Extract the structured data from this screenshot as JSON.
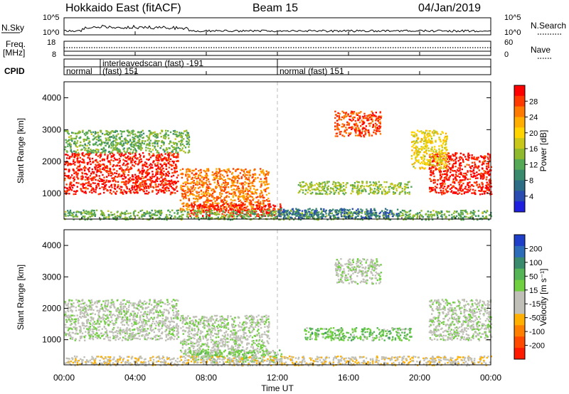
{
  "header": {
    "station": "Hokkaido East (fitACF)",
    "beam": "Beam 15",
    "date": "04/Jan/2019"
  },
  "panels": {
    "nsky_label": "N.Sky",
    "nsearch_label": "N.Search",
    "nsky_ticks": [
      "10^5",
      "10^0"
    ],
    "nsearch_ticks": [
      "10^5",
      "10^0"
    ],
    "freq_label_1": "Freq.",
    "freq_label_2": "[MHz]",
    "freq_ticks": [
      "18",
      "8"
    ],
    "nave_label": "Nave",
    "nave_ticks": [
      "60",
      "0"
    ],
    "cpid_label": "CPID"
  },
  "cpid_segments": [
    {
      "line1": "normal",
      "line2": ""
    },
    {
      "line1": "interleavedscan (fast) -191",
      "line2": "(fast) 151"
    },
    {
      "line1": "normal (fast) 151",
      "line2": ""
    }
  ],
  "power_colorbar": {
    "label": "Power [dB]",
    "ticks": [
      "28",
      "24",
      "20",
      "16",
      "12",
      "8",
      "4"
    ],
    "colors": [
      "#ff0000",
      "#ff3a00",
      "#ff7a00",
      "#ffae00",
      "#ffd400",
      "#c9c81a",
      "#8fba2e",
      "#55a855",
      "#3a8a6e",
      "#2d6e86",
      "#2a4cb0",
      "#1f1fe0"
    ]
  },
  "velocity_colorbar": {
    "label": "Velocity [m s⁻¹]",
    "ticks": [
      "200",
      "100",
      "50",
      "15",
      "-15",
      "-50",
      "-100",
      "-200"
    ],
    "colors": [
      "#1f3fc8",
      "#2d6cb8",
      "#3a8a6e",
      "#55b455",
      "#70d040",
      "#c0c0b8",
      "#c0c0b8",
      "#ffb000",
      "#ff8000",
      "#ff4a00",
      "#ff1a00"
    ]
  },
  "chart_data": {
    "type": "heatmap",
    "title": "Hokkaido East (fitACF)",
    "xlabel": "Time UT",
    "ylabel": "Slant Range [km]",
    "x_tick_labels": [
      "00:00",
      "04:00",
      "08:00",
      "12:00",
      "16:00",
      "20:00",
      "00:00"
    ],
    "x_ticks_hours": [
      0,
      4,
      8,
      12,
      16,
      20,
      24
    ],
    "xlim_hours": [
      0,
      24
    ],
    "y_ticks": [
      1000,
      2000,
      3000,
      4000
    ],
    "ylim": [
      200,
      4500
    ],
    "panels": [
      {
        "name": "Power [dB]",
        "zlim": [
          0,
          30
        ],
        "regions": [
          {
            "t0": 0.0,
            "t1": 6.4,
            "r0": 1000,
            "r1": 2300,
            "value": 28
          },
          {
            "t0": 0.0,
            "t1": 7.0,
            "r0": 2300,
            "r1": 3000,
            "value": 12
          },
          {
            "t0": 6.5,
            "t1": 11.5,
            "r0": 500,
            "r1": 1800,
            "value": 24
          },
          {
            "t0": 7.0,
            "t1": 12.2,
            "r0": 300,
            "r1": 700,
            "value": 28
          },
          {
            "t0": 0.0,
            "t1": 24.0,
            "r0": 200,
            "r1": 500,
            "value": 12
          },
          {
            "t0": 12.0,
            "t1": 18.8,
            "r0": 250,
            "r1": 550,
            "value": 6
          },
          {
            "t0": 15.2,
            "t1": 17.8,
            "r0": 2800,
            "r1": 3600,
            "value": 26
          },
          {
            "t0": 13.0,
            "t1": 19.5,
            "r0": 1000,
            "r1": 1400,
            "value": 14
          },
          {
            "t0": 20.5,
            "t1": 24.0,
            "r0": 1000,
            "r1": 2300,
            "value": 28
          },
          {
            "t0": 19.5,
            "t1": 21.5,
            "r0": 1800,
            "r1": 3000,
            "value": 18
          }
        ]
      },
      {
        "name": "Velocity [m s⁻¹]",
        "zlim": [
          -200,
          200
        ],
        "regions": [
          {
            "t0": 0.0,
            "t1": 6.4,
            "r0": 1000,
            "r1": 2300,
            "value": 0
          },
          {
            "t0": 6.5,
            "t1": 11.5,
            "r0": 500,
            "r1": 1800,
            "value": 0
          },
          {
            "t0": 7.0,
            "t1": 12.2,
            "r0": 300,
            "r1": 700,
            "value": 30
          },
          {
            "t0": 0.0,
            "t1": 24.0,
            "r0": 200,
            "r1": 500,
            "value": -40
          },
          {
            "t0": 13.5,
            "t1": 19.5,
            "r0": 1000,
            "r1": 1400,
            "value": 50
          },
          {
            "t0": 15.2,
            "t1": 17.8,
            "r0": 2800,
            "r1": 3600,
            "value": 0
          },
          {
            "t0": 20.5,
            "t1": 24.0,
            "r0": 1000,
            "r1": 2300,
            "value": 0
          }
        ]
      }
    ]
  }
}
